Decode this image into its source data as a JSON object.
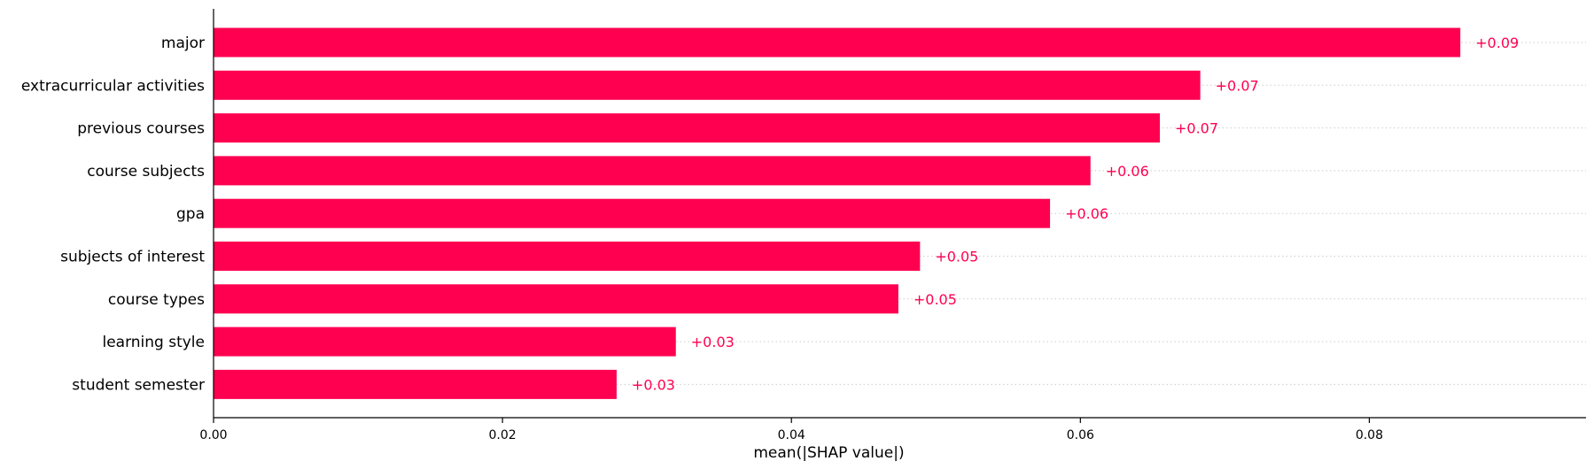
{
  "chart_data": {
    "type": "bar",
    "orientation": "horizontal",
    "categories": [
      "major",
      "extracurricular activities",
      "previous courses",
      "course subjects",
      "gpa",
      "subjects of interest",
      "course types",
      "learning style",
      "student semester"
    ],
    "values": [
      0.0863,
      0.0683,
      0.0655,
      0.0607,
      0.0579,
      0.0489,
      0.0474,
      0.032,
      0.0279
    ],
    "value_labels": [
      "+0.09",
      "+0.07",
      "+0.07",
      "+0.06",
      "+0.06",
      "+0.05",
      "+0.05",
      "+0.03",
      "+0.03"
    ],
    "xlabel": "mean(|SHAP value|)",
    "ylabel": "",
    "title": "",
    "xlim": [
      0,
      0.095
    ],
    "xticks": [
      0.0,
      0.02,
      0.04,
      0.06,
      0.08
    ],
    "xtick_labels": [
      "0.00",
      "0.02",
      "0.04",
      "0.06",
      "0.08"
    ],
    "grid": "dotted horizontal guide per row",
    "legend": "none",
    "colors": {
      "bar": "#ff0051",
      "label": "#ff0051",
      "axis": "#000000",
      "guide": "#cccccc"
    }
  }
}
